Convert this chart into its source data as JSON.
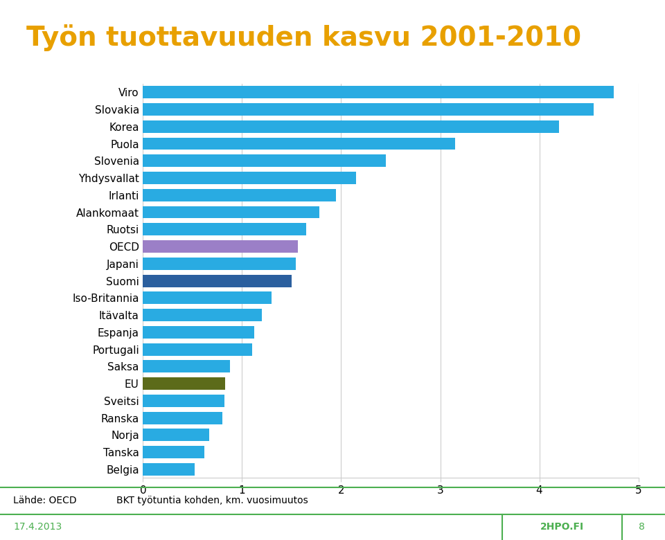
{
  "title": "Työn tuottavuuden kasvu 2001-2010",
  "title_color": "#E8A000",
  "categories": [
    "Viro",
    "Slovakia",
    "Korea",
    "Puola",
    "Slovenia",
    "Yhdysvallat",
    "Irlanti",
    "Alankomaat",
    "Ruotsi",
    "OECD",
    "Japani",
    "Suomi",
    "Iso-Britannia",
    "Itävalta",
    "Espanja",
    "Portugali",
    "Saksa",
    "EU",
    "Sveitsi",
    "Ranska",
    "Norja",
    "Tanska",
    "Belgia"
  ],
  "values": [
    4.75,
    4.55,
    4.2,
    3.15,
    2.45,
    2.15,
    1.95,
    1.78,
    1.65,
    1.56,
    1.54,
    1.5,
    1.3,
    1.2,
    1.12,
    1.1,
    0.88,
    0.83,
    0.82,
    0.8,
    0.67,
    0.62,
    0.52
  ],
  "bar_colors": [
    "#29ABE2",
    "#29ABE2",
    "#29ABE2",
    "#29ABE2",
    "#29ABE2",
    "#29ABE2",
    "#29ABE2",
    "#29ABE2",
    "#29ABE2",
    "#9B7FC7",
    "#29ABE2",
    "#2B5F9E",
    "#29ABE2",
    "#29ABE2",
    "#29ABE2",
    "#29ABE2",
    "#29ABE2",
    "#5C6B1A",
    "#29ABE2",
    "#29ABE2",
    "#29ABE2",
    "#29ABE2",
    "#29ABE2"
  ],
  "xlim": [
    0,
    5
  ],
  "xticks": [
    0,
    1,
    2,
    3,
    4,
    5
  ],
  "footer_left": "Lähde: OECD",
  "footer_center": "BKT työtuntia kohden, km. vuosimuutos",
  "footer_date": "17.4.2013",
  "footer_brand": "2HPO.FI",
  "footer_page": "8",
  "footer_color": "#4CAF50",
  "background_color": "#FFFFFF",
  "gridline_color": "#CCCCCC",
  "title_fontsize": 28,
  "label_fontsize": 11,
  "tick_fontsize": 11,
  "footer_fontsize": 10
}
